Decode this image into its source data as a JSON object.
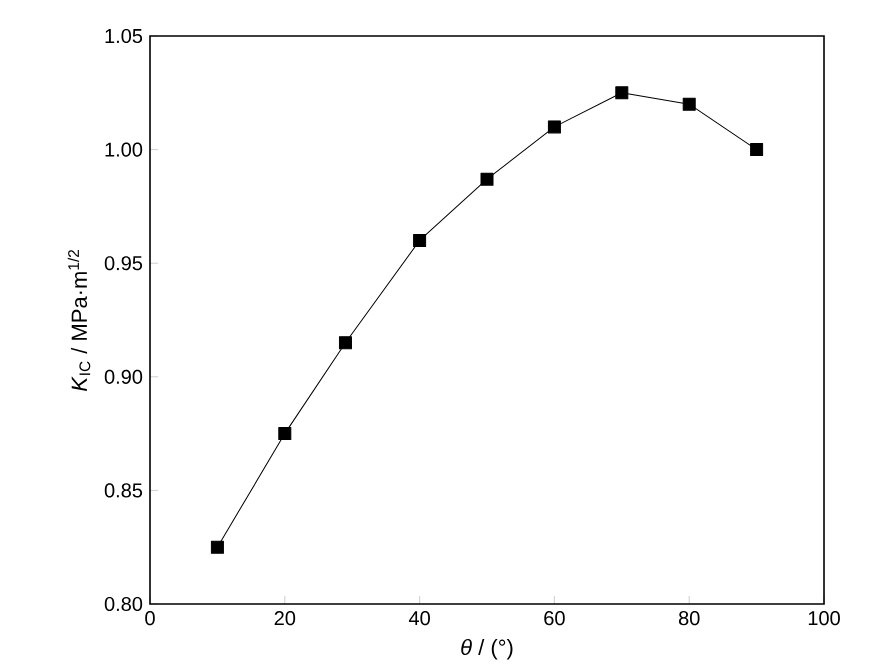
{
  "chart_data": {
    "type": "line",
    "xlabel": "*θ* / (°)",
    "ylabel": "*K*$_{IC}$ / MPa·m$^{1/2}$",
    "x": [
      10,
      20,
      29,
      40,
      50,
      60,
      70,
      80,
      90
    ],
    "series": [
      {
        "color": "#000000",
        "values": [
          0.825,
          0.875,
          0.915,
          0.96,
          0.987,
          1.01,
          1.025,
          1.02,
          1.0
        ]
      }
    ],
    "xlim": [
      0,
      100
    ],
    "xticks": [
      0,
      20,
      40,
      60,
      80,
      100
    ],
    "ylim": [
      0.8,
      1.05
    ],
    "yticks": [
      {
        "value": 0.8,
        "label": "0.80"
      },
      {
        "value": 0.85,
        "label": "0.85"
      },
      {
        "value": 0.9,
        "label": "0.90"
      },
      {
        "value": 0.95,
        "label": "0.95"
      },
      {
        "value": 1.0,
        "label": "1.00"
      },
      {
        "value": 1.05,
        "label": "1.05"
      }
    ],
    "grid": false,
    "marker": "square",
    "line_style": "solid"
  }
}
